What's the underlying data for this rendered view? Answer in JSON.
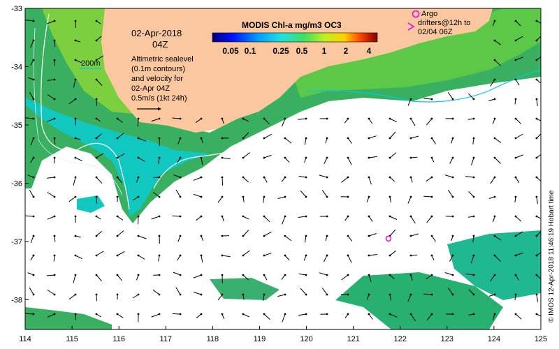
{
  "map": {
    "x_axis_labels": [
      "114",
      "115",
      "116",
      "117",
      "118",
      "119",
      "120",
      "121",
      "122",
      "123",
      "124",
      "125"
    ],
    "y_axis_labels": [
      "-33",
      "-34",
      "-35",
      "-36",
      "-37",
      "-38"
    ],
    "date_line": "02-Apr-2018",
    "time_line": "04Z",
    "altimetry_note": [
      "Altimetric sealevel",
      "(0.1m contours)",
      "and velocity for",
      "02-Apr 04Z",
      "0.5m/s (1kt 24h)"
    ],
    "depth_label": "200m",
    "colorbar": {
      "title": "MODIS Chl-a mg/m3 OC3",
      "ticks": [
        "0.05",
        "0.1",
        "0.25",
        "0.5",
        "1",
        "2",
        "4"
      ]
    },
    "argo_legend": [
      "Argo",
      "drifters@12h to",
      "02/04 06Z"
    ],
    "credit": "© IMOS 12-Apr-2018 11:46:19 Hobart time",
    "colors": {
      "land": "#FBC79E",
      "argo": "#E020E0",
      "contour_cyan": "#00C8E8",
      "contour_white": "#FFFFFF"
    },
    "argo_position": {
      "lon": 121.75,
      "lat": -36.95
    }
  }
}
